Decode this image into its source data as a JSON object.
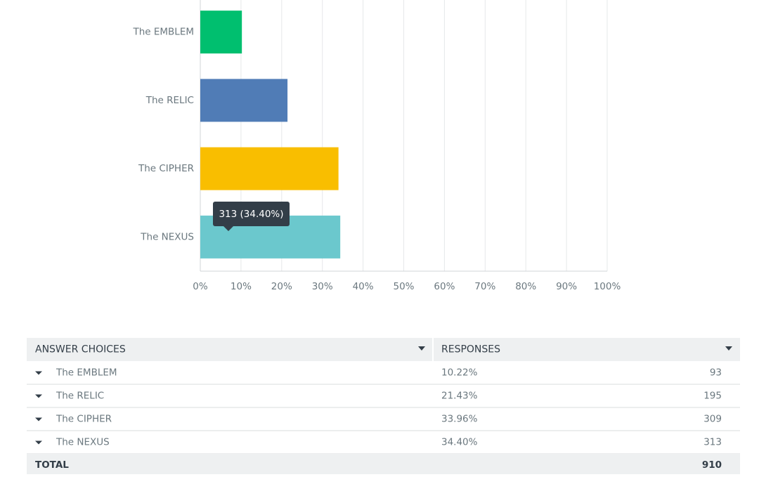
{
  "chart_data": {
    "type": "bar",
    "orientation": "horizontal",
    "categories": [
      "The EMBLEM",
      "The RELIC",
      "The CIPHER",
      "The NEXUS"
    ],
    "values": [
      10.22,
      21.43,
      33.96,
      34.4
    ],
    "colors": [
      "#00bf6f",
      "#507cb6",
      "#f9be00",
      "#6bc8cd"
    ],
    "xlim": [
      0,
      100
    ],
    "xticks": [
      {
        "value": 0,
        "label": "0%"
      },
      {
        "value": 10,
        "label": "10%"
      },
      {
        "value": 20,
        "label": "20%"
      },
      {
        "value": 30,
        "label": "30%"
      },
      {
        "value": 40,
        "label": "40%"
      },
      {
        "value": 50,
        "label": "50%"
      },
      {
        "value": 60,
        "label": "60%"
      },
      {
        "value": 70,
        "label": "70%"
      },
      {
        "value": 80,
        "label": "80%"
      },
      {
        "value": 90,
        "label": "90%"
      },
      {
        "value": 100,
        "label": "100%"
      }
    ],
    "grid": true,
    "tooltip": "313 (34.40%)"
  },
  "table": {
    "header": [
      "ANSWER CHOICES",
      "RESPONSES"
    ],
    "rows": [
      [
        "The EMBLEM",
        "10.22%",
        93
      ],
      [
        "The RELIC",
        "21.43%",
        195
      ],
      [
        "The CIPHER",
        "33.96%",
        309
      ],
      [
        "The NEXUS",
        "34.40%",
        313
      ]
    ],
    "total": [
      "TOTAL",
      910
    ]
  }
}
